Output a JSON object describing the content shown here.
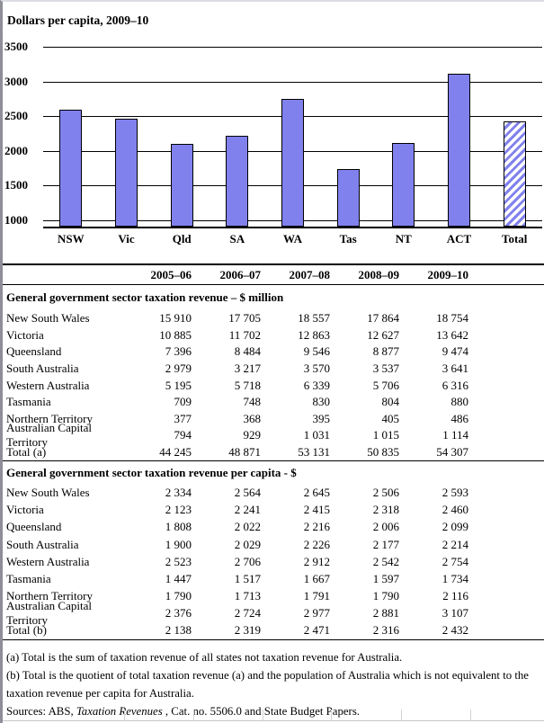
{
  "chart_data": {
    "type": "bar",
    "title": "Dollars per capita, 2009–10",
    "categories": [
      "NSW",
      "Vic",
      "Qld",
      "SA",
      "WA",
      "Tas",
      "NT",
      "ACT",
      "Total"
    ],
    "values": [
      2593,
      2460,
      2099,
      2214,
      2754,
      1734,
      2116,
      3107,
      2432
    ],
    "xlabel": "",
    "ylabel": "",
    "ylim": [
      1000,
      3500
    ],
    "y_ticks": [
      1000,
      1500,
      2000,
      2500,
      3000,
      3500
    ],
    "grid": true,
    "legend": "none",
    "bar_color": "#8181ee",
    "hatched_category": "Total"
  },
  "table": {
    "col_headers": [
      "2005–06",
      "2006–07",
      "2007–08",
      "2008–09",
      "2009–10"
    ],
    "sections": [
      {
        "title": "General government sector taxation revenue – $ million",
        "rows": [
          {
            "label": "New South Wales",
            "values": [
              "15 910",
              "17 705",
              "18 557",
              "17 864",
              "18 754"
            ]
          },
          {
            "label": "Victoria",
            "values": [
              "10 885",
              "11 702",
              "12 863",
              "12 627",
              "13 642"
            ]
          },
          {
            "label": "Queensland",
            "values": [
              "7 396",
              "8 484",
              "9 546",
              "8 877",
              "9 474"
            ]
          },
          {
            "label": "South Australia",
            "values": [
              "2 979",
              "3 217",
              "3 570",
              "3 537",
              "3 641"
            ]
          },
          {
            "label": "Western Australia",
            "values": [
              "5 195",
              "5 718",
              "6 339",
              "5 706",
              "6 316"
            ]
          },
          {
            "label": "Tasmania",
            "values": [
              "709",
              "748",
              "830",
              "804",
              "880"
            ]
          },
          {
            "label": "Northern Territory",
            "values": [
              "377",
              "368",
              "395",
              "405",
              "486"
            ]
          },
          {
            "label": "Australian Capital Territory",
            "values": [
              "794",
              "929",
              "1 031",
              "1 015",
              "1 114"
            ]
          },
          {
            "label": "Total (a)",
            "values": [
              "44 245",
              "48 871",
              "53 131",
              "50 835",
              "54 307"
            ]
          }
        ]
      },
      {
        "title": "General government sector taxation revenue per capita - $",
        "rows": [
          {
            "label": "New South Wales",
            "values": [
              "2 334",
              "2 564",
              "2 645",
              "2 506",
              "2 593"
            ]
          },
          {
            "label": "Victoria",
            "values": [
              "2 123",
              "2 241",
              "2 415",
              "2 318",
              "2 460"
            ]
          },
          {
            "label": "Queensland",
            "values": [
              "1 808",
              "2 022",
              "2 216",
              "2 006",
              "2 099"
            ]
          },
          {
            "label": "South Australia",
            "values": [
              "1 900",
              "2 029",
              "2 226",
              "2 177",
              "2 214"
            ]
          },
          {
            "label": "Western Australia",
            "values": [
              "2 523",
              "2 706",
              "2 912",
              "2 542",
              "2 754"
            ]
          },
          {
            "label": "Tasmania",
            "values": [
              "1 447",
              "1 517",
              "1 667",
              "1 597",
              "1 734"
            ]
          },
          {
            "label": "Northern Territory",
            "values": [
              "1 790",
              "1 713",
              "1 791",
              "1 790",
              "2 116"
            ]
          },
          {
            "label": "Australian Capital Territory",
            "values": [
              "2 376",
              "2 724",
              "2 977",
              "2 881",
              "3 107"
            ]
          },
          {
            "label": "Total (b)",
            "values": [
              "2 138",
              "2 319",
              "2 471",
              "2 316",
              "2 432"
            ]
          }
        ]
      }
    ]
  },
  "footnotes": [
    "(a) Total is the sum of taxation revenue of all states not taxation revenue for Australia.",
    "(b) Total is the quotient of total taxation revenue (a) and the population of Australia which is not equivalent to the taxation revenue per capita for Australia."
  ],
  "sources": {
    "prefix": "Sources: ABS, ",
    "italic": "Taxation Revenues",
    "suffix": " , Cat. no. 5506.0 and State Budget Papers."
  }
}
